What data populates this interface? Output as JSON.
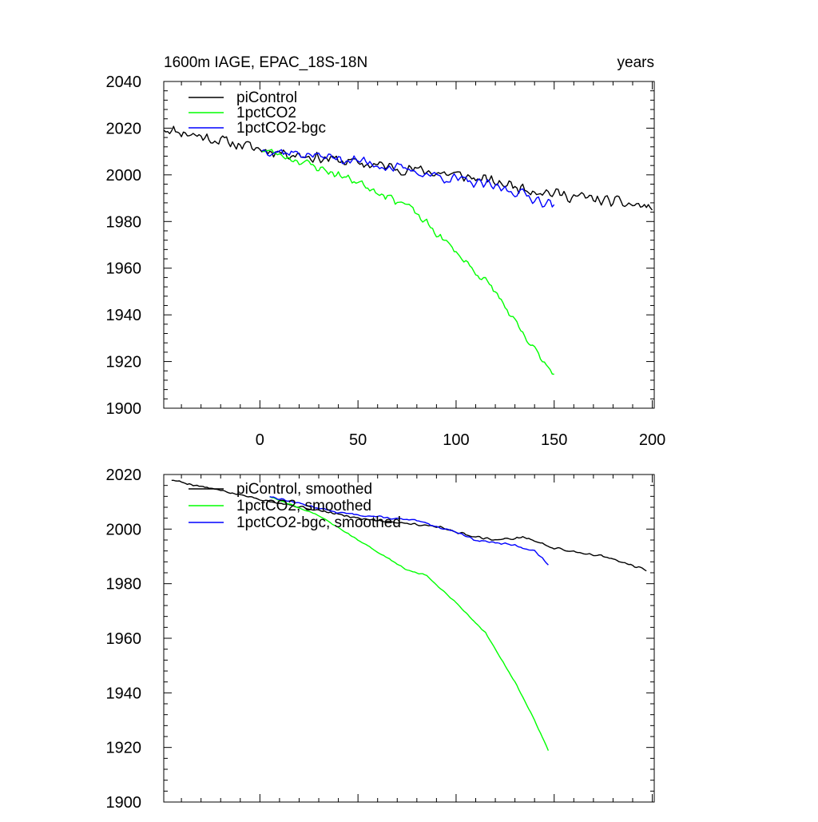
{
  "colors": {
    "background": "#ffffff",
    "axis": "#000000"
  },
  "chart_data": [
    {
      "type": "line",
      "title": "1600m IAGE, EPAC_18S-18N",
      "title_right": "years",
      "xlim": [
        -49,
        201
      ],
      "ylim": [
        1900,
        2040
      ],
      "xticks": [
        0,
        50,
        100,
        150,
        200
      ],
      "xtick_labels": [
        "0",
        "50",
        "100",
        "150",
        "200"
      ],
      "yticks": [
        1900,
        1920,
        1940,
        1960,
        1980,
        2000,
        2020,
        2040
      ],
      "ytick_labels": [
        "1900",
        "1920",
        "1940",
        "1960",
        "1980",
        "2000",
        "2020",
        "2040"
      ],
      "legend": "top-left",
      "series": [
        {
          "name": "piControl",
          "color": "#000000",
          "x_start": -49,
          "noise": 3.0,
          "seed": 11,
          "trend": [
            [
              -49,
              2020
            ],
            [
              0,
              2011
            ],
            [
              50,
              2005
            ],
            [
              100,
              2000
            ],
            [
              150,
              1992
            ],
            [
              200,
              1986
            ]
          ]
        },
        {
          "name": "1pctCO2",
          "color": "#00ff00",
          "x_start": 1,
          "noise": 2.2,
          "seed": 23,
          "trend": [
            [
              1,
              2011
            ],
            [
              20,
              2006
            ],
            [
              50,
              1997
            ],
            [
              75,
              1987
            ],
            [
              100,
              1967
            ],
            [
              120,
              1950
            ],
            [
              135,
              1930
            ],
            [
              150,
              1915
            ]
          ]
        },
        {
          "name": "1pctCO2-bgc",
          "color": "#0000ff",
          "x_start": 1,
          "noise": 2.8,
          "seed": 37,
          "trend": [
            [
              1,
              2011
            ],
            [
              50,
              2006
            ],
            [
              100,
              1998
            ],
            [
              130,
              1993
            ],
            [
              150,
              1987
            ]
          ]
        }
      ]
    },
    {
      "type": "line",
      "title": "",
      "xlim": [
        -49,
        201
      ],
      "ylim": [
        1900,
        2020
      ],
      "xticks": [
        0,
        50,
        100,
        150,
        200
      ],
      "xtick_labels": [],
      "yticks": [
        1900,
        1920,
        1940,
        1960,
        1980,
        2000,
        2020
      ],
      "ytick_labels": [
        "1900",
        "1920",
        "1940",
        "1960",
        "1980",
        "2000",
        "2020"
      ],
      "legend": "top-left",
      "series": [
        {
          "name": "piControl, smoothed",
          "color": "#000000",
          "x_start": -45,
          "x_end": 197,
          "noise": 0.5,
          "seed": 5,
          "trend": [
            [
              -45,
              2018
            ],
            [
              0,
              2011
            ],
            [
              50,
              2004
            ],
            [
              90,
              2001
            ],
            [
              105,
              1998
            ],
            [
              120,
              1996
            ],
            [
              135,
              1997
            ],
            [
              150,
              1993
            ],
            [
              175,
              1990
            ],
            [
              197,
              1985
            ]
          ]
        },
        {
          "name": "1pctCO2, smoothed",
          "color": "#00ff00",
          "x_start": 5,
          "x_end": 147,
          "noise": 0.25,
          "seed": 9,
          "trend": [
            [
              5,
              2012
            ],
            [
              30,
              2005
            ],
            [
              50,
              1996
            ],
            [
              75,
              1985
            ],
            [
              85,
              1983
            ],
            [
              100,
              1973
            ],
            [
              115,
              1962
            ],
            [
              130,
              1944
            ],
            [
              140,
              1930
            ],
            [
              147,
              1919
            ]
          ]
        },
        {
          "name": "1pctCO2-bgc, smoothed",
          "color": "#0000ff",
          "x_start": 5,
          "x_end": 147,
          "noise": 0.45,
          "seed": 13,
          "trend": [
            [
              5,
              2012
            ],
            [
              40,
              2006
            ],
            [
              80,
              2003
            ],
            [
              100,
              1999
            ],
            [
              110,
              1996
            ],
            [
              130,
              1994
            ],
            [
              140,
              1992
            ],
            [
              147,
              1987
            ]
          ]
        }
      ]
    }
  ]
}
